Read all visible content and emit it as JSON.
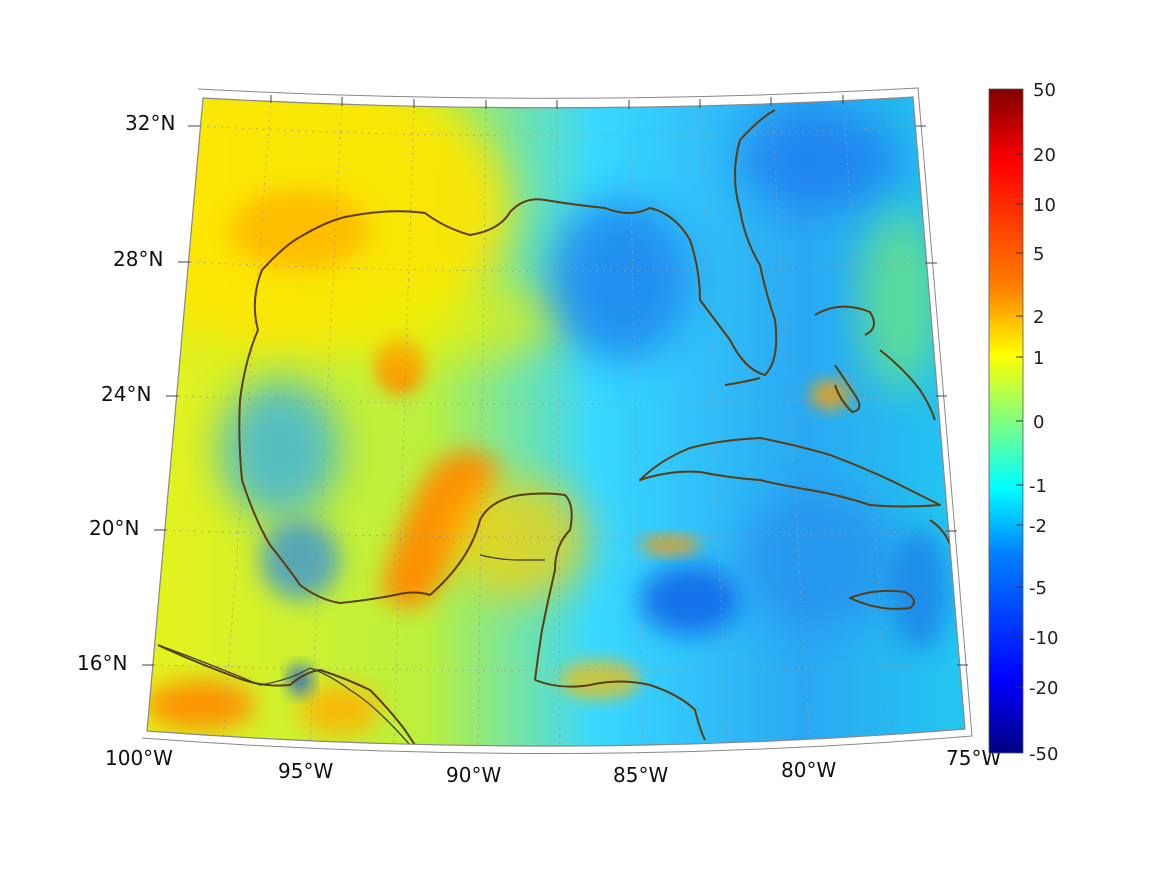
{
  "map": {
    "projection": "conic",
    "extent": {
      "lon_min": -100,
      "lon_max": -75,
      "lat_min": 14,
      "lat_max": 33
    },
    "lon_labels": [
      {
        "lon": -100,
        "text": "100°W"
      },
      {
        "lon": -95,
        "text": "95°W"
      },
      {
        "lon": -90,
        "text": "90°W"
      },
      {
        "lon": -85,
        "text": "85°W"
      },
      {
        "lon": -80,
        "text": "80°W"
      },
      {
        "lon": -75,
        "text": "75°W"
      }
    ],
    "lat_labels": [
      {
        "lat": 32,
        "text": "32°N"
      },
      {
        "lat": 28,
        "text": "28°N"
      },
      {
        "lat": 24,
        "text": "24°N"
      },
      {
        "lat": 20,
        "text": "20°N"
      },
      {
        "lat": 16,
        "text": "16°N"
      }
    ],
    "colors": {
      "coastline": "#5c3d10",
      "border": "#3d3d3d",
      "frame": "#888888"
    },
    "field_features": [
      {
        "name": "yucatan-positive-band",
        "sign": "positive",
        "level": 0.85
      },
      {
        "name": "northwest-gulf-positive",
        "sign": "positive",
        "level": 0.6
      },
      {
        "name": "central-gulf-patch",
        "sign": "positive",
        "level": 0.7
      },
      {
        "name": "florida-shelf-negative",
        "sign": "negative",
        "level": 0.75
      },
      {
        "name": "caribbean-negative",
        "sign": "negative",
        "level": 0.7
      },
      {
        "name": "pacific-positive",
        "sign": "positive",
        "level": 0.8
      }
    ]
  },
  "colorbar": {
    "labels": [
      "50",
      "20",
      "10",
      "5",
      "2",
      "1",
      "0",
      "-1",
      "-2",
      "-5",
      "-10",
      "-20",
      "-50"
    ],
    "colormap": "jet",
    "stops": [
      "#800000",
      "#ff0000",
      "#ff8000",
      "#ffff00",
      "#80ff80",
      "#00ffff",
      "#0080ff",
      "#0000ff",
      "#000080"
    ]
  }
}
